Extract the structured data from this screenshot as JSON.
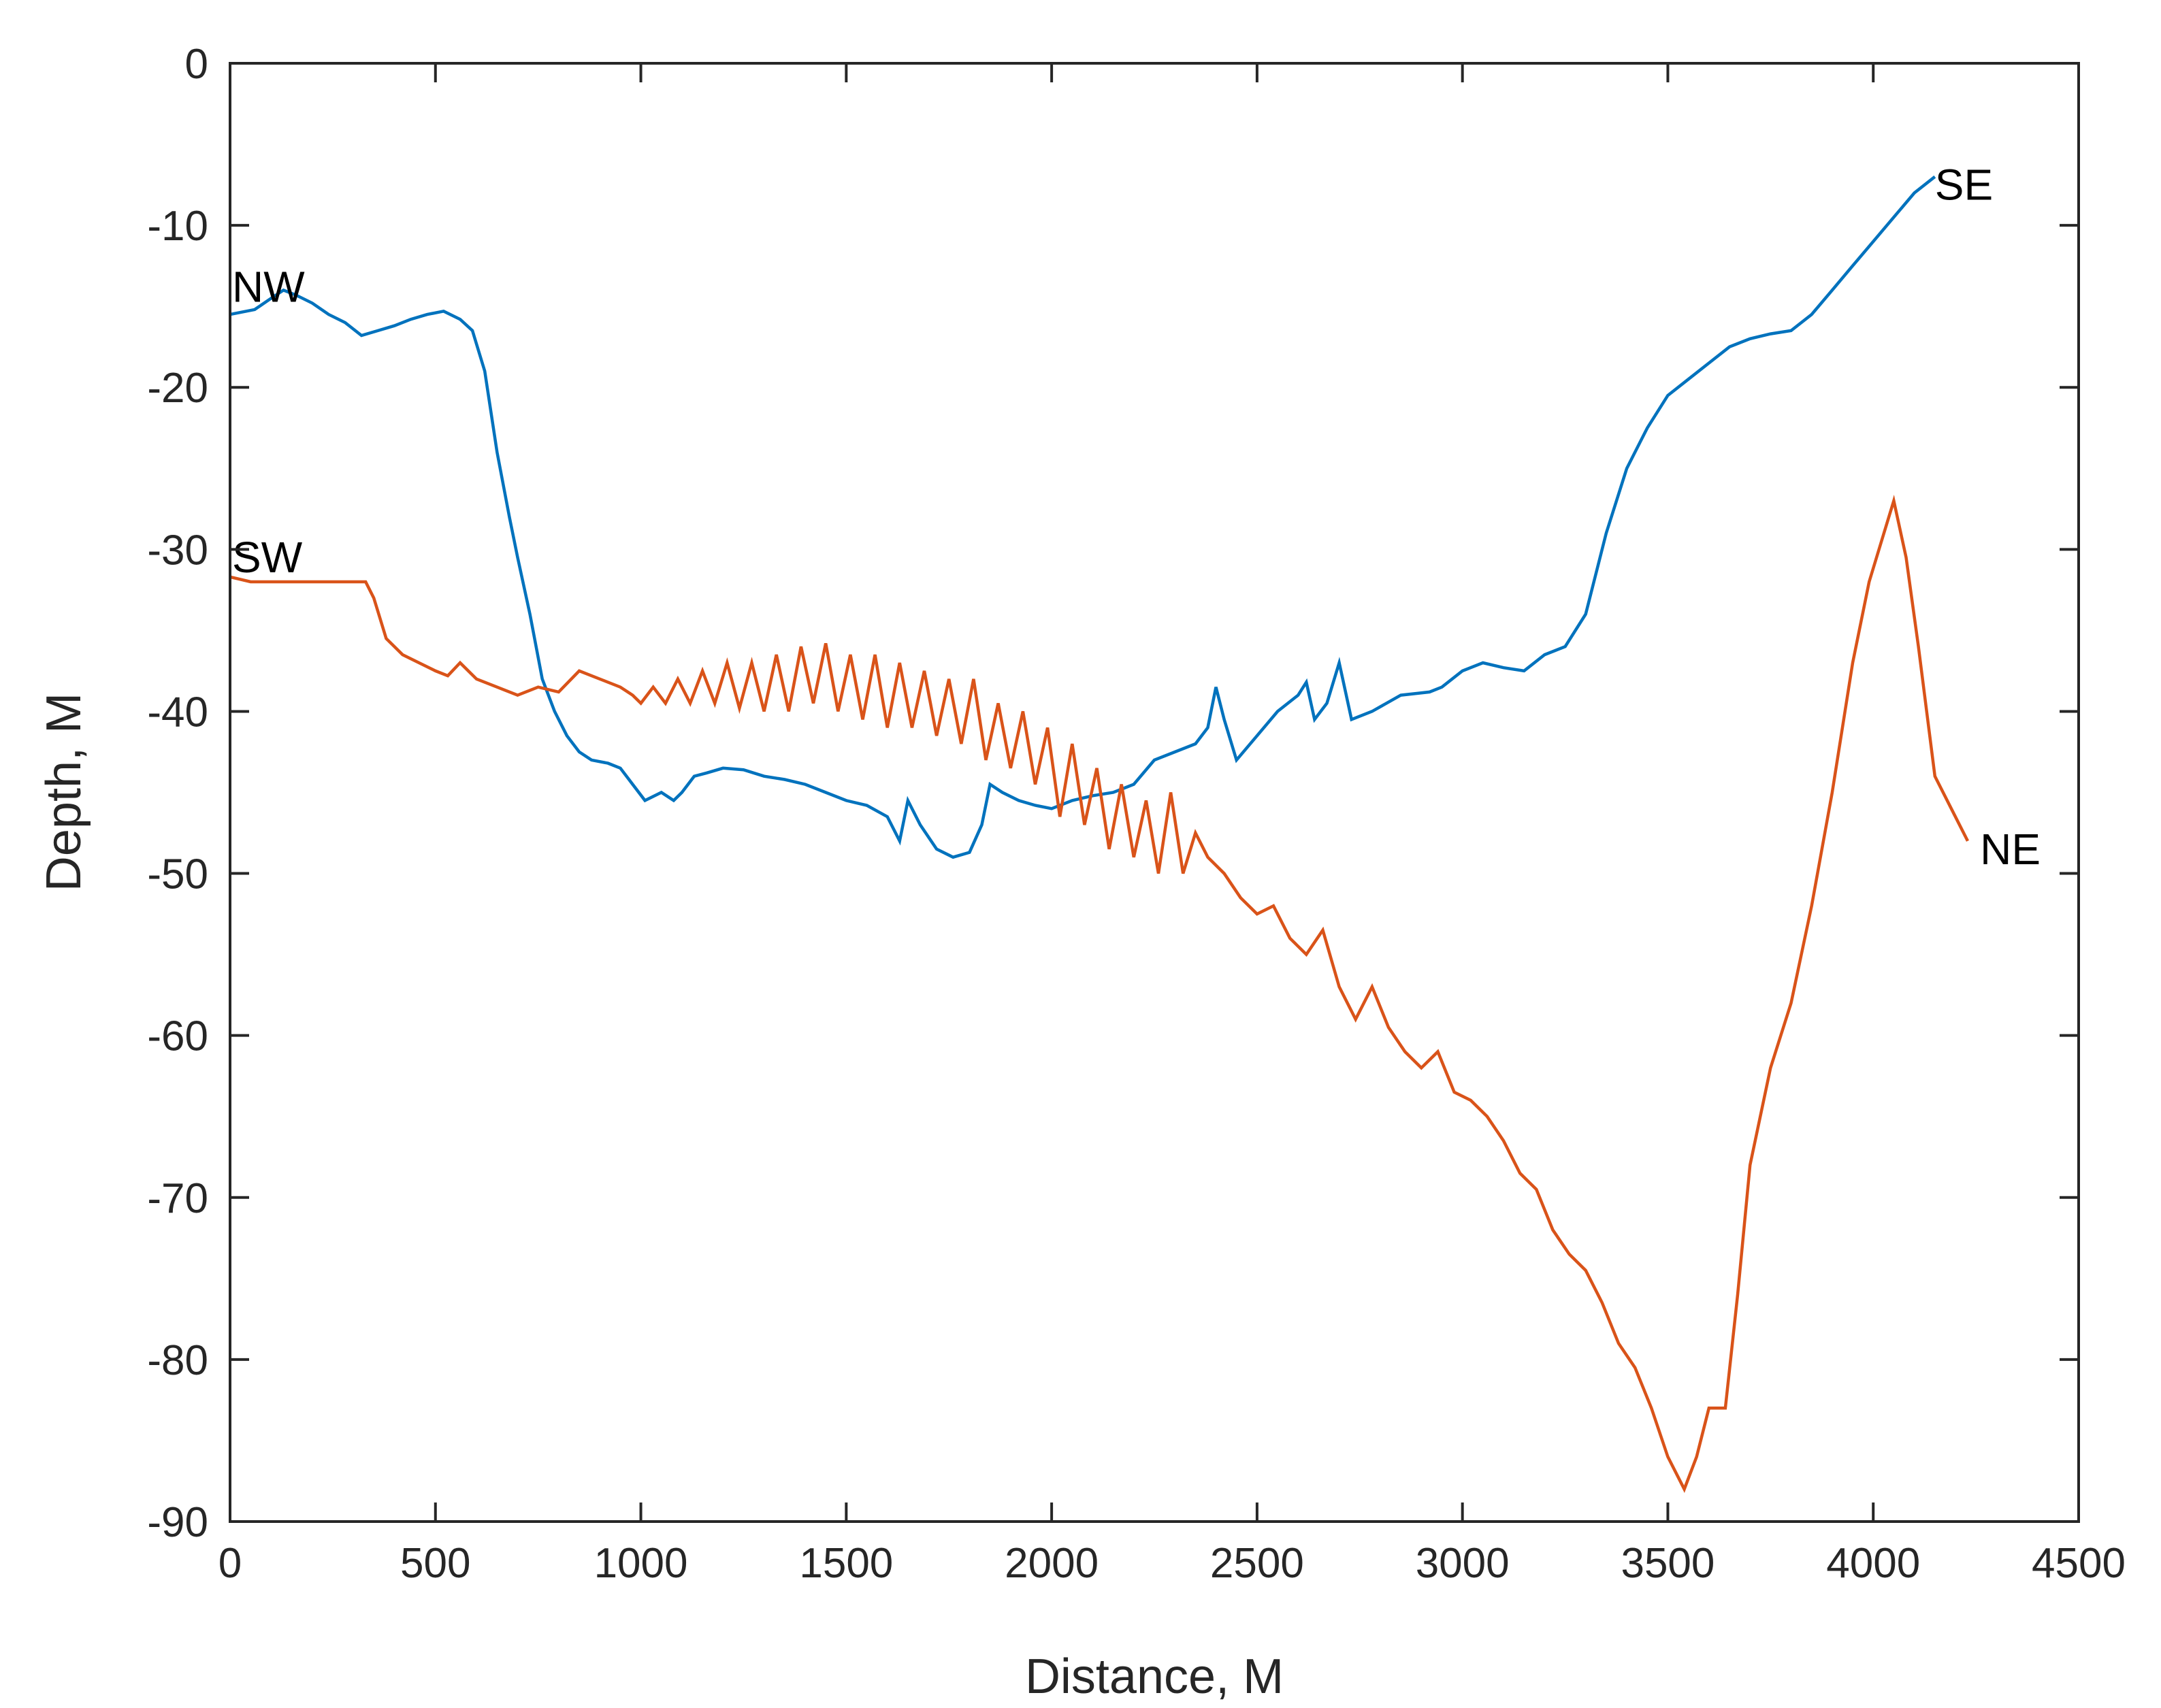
{
  "colors": {
    "series_a": "#0072BD",
    "series_b": "#D95319",
    "axes": "#262626",
    "background": "#ffffff"
  },
  "chart_data": {
    "type": "line",
    "title": "",
    "xlabel": "Distance, M",
    "ylabel": "Depth, M",
    "xlim": [
      0,
      4500
    ],
    "ylim": [
      -90,
      0
    ],
    "xticks": [
      0,
      500,
      1000,
      1500,
      2000,
      2500,
      3000,
      3500,
      4000,
      4500
    ],
    "yticks": [
      0,
      -10,
      -20,
      -30,
      -40,
      -50,
      -60,
      -70,
      -80,
      -90
    ],
    "xtick_labels": [
      "0",
      "500",
      "1000",
      "1500",
      "2000",
      "2500",
      "3000",
      "3500",
      "4000",
      "4500"
    ],
    "ytick_labels": [
      "0",
      "-10",
      "-20",
      "-30",
      "-40",
      "-50",
      "-60",
      "-70",
      "-80",
      "-90"
    ],
    "grid": false,
    "legend": "none",
    "annotations": [
      {
        "text": "NW",
        "x": 5,
        "y": -13.8
      },
      {
        "text": "SE",
        "x": 4150,
        "y": -7.5
      },
      {
        "text": "SW",
        "x": 5,
        "y": -30.5
      },
      {
        "text": "NE",
        "x": 4260,
        "y": -48.5
      }
    ],
    "series": [
      {
        "color": "#0072BD",
        "x": [
          0,
          60,
          100,
          130,
          160,
          200,
          240,
          280,
          320,
          360,
          400,
          440,
          480,
          520,
          560,
          590,
          620,
          650,
          680,
          700,
          730,
          760,
          790,
          820,
          850,
          880,
          920,
          950,
          980,
          1010,
          1050,
          1080,
          1100,
          1130,
          1160,
          1200,
          1250,
          1300,
          1350,
          1400,
          1450,
          1500,
          1550,
          1600,
          1630,
          1650,
          1680,
          1720,
          1760,
          1800,
          1830,
          1850,
          1880,
          1920,
          1960,
          2000,
          2050,
          2100,
          2150,
          2200,
          2250,
          2300,
          2350,
          2380,
          2400,
          2420,
          2450,
          2500,
          2550,
          2600,
          2620,
          2640,
          2670,
          2700,
          2730,
          2780,
          2850,
          2920,
          2950,
          3000,
          3050,
          3100,
          3150,
          3200,
          3250,
          3300,
          3350,
          3400,
          3450,
          3500,
          3550,
          3600,
          3650,
          3700,
          3750,
          3800,
          3850,
          3900,
          3950,
          4000,
          4050,
          4100,
          4150
        ],
        "y": [
          -15.5,
          -15.2,
          -14.5,
          -14.0,
          -14.3,
          -14.8,
          -15.5,
          -16.0,
          -16.8,
          -16.5,
          -16.2,
          -15.8,
          -15.5,
          -15.3,
          -15.8,
          -16.5,
          -19.0,
          -24.0,
          -28.0,
          -30.5,
          -34.0,
          -38.0,
          -40.0,
          -41.5,
          -42.5,
          -43.0,
          -43.2,
          -43.5,
          -44.5,
          -45.5,
          -45.0,
          -45.5,
          -45.0,
          -44.0,
          -43.8,
          -43.5,
          -43.6,
          -44.0,
          -44.2,
          -44.5,
          -45.0,
          -45.5,
          -45.8,
          -46.5,
          -48.0,
          -45.5,
          -47.0,
          -48.5,
          -49.0,
          -48.7,
          -47.0,
          -44.5,
          -45.0,
          -45.5,
          -45.8,
          -46.0,
          -45.5,
          -45.2,
          -45.0,
          -44.5,
          -43.0,
          -42.5,
          -42.0,
          -41.0,
          -38.5,
          -40.5,
          -43.0,
          -41.5,
          -40.0,
          -39.0,
          -38.2,
          -40.5,
          -39.5,
          -37.0,
          -40.5,
          -40.0,
          -39.0,
          -38.8,
          -38.5,
          -37.5,
          -37.0,
          -37.3,
          -37.5,
          -36.5,
          -36.0,
          -34.0,
          -29.0,
          -25.0,
          -22.5,
          -20.5,
          -19.5,
          -18.5,
          -17.5,
          -17.0,
          -16.7,
          -16.5,
          -15.5,
          -14.0,
          -12.5,
          -11.0,
          -9.5,
          -8.0,
          -7.0
        ]
      },
      {
        "color": "#D95319",
        "x": [
          0,
          50,
          100,
          150,
          200,
          250,
          300,
          330,
          350,
          380,
          420,
          460,
          500,
          530,
          560,
          600,
          650,
          700,
          750,
          800,
          850,
          900,
          950,
          980,
          1000,
          1030,
          1060,
          1090,
          1120,
          1150,
          1180,
          1210,
          1240,
          1270,
          1300,
          1330,
          1360,
          1390,
          1420,
          1450,
          1480,
          1510,
          1540,
          1570,
          1600,
          1630,
          1660,
          1690,
          1720,
          1750,
          1780,
          1810,
          1840,
          1870,
          1900,
          1930,
          1960,
          1990,
          2020,
          2050,
          2080,
          2110,
          2140,
          2170,
          2200,
          2230,
          2260,
          2290,
          2320,
          2350,
          2380,
          2420,
          2460,
          2500,
          2540,
          2580,
          2620,
          2660,
          2700,
          2740,
          2780,
          2820,
          2860,
          2900,
          2940,
          2980,
          3020,
          3060,
          3100,
          3140,
          3180,
          3220,
          3260,
          3300,
          3340,
          3380,
          3420,
          3460,
          3500,
          3540,
          3570,
          3600,
          3640,
          3670,
          3700,
          3750,
          3800,
          3850,
          3900,
          3950,
          3990,
          4020,
          4050,
          4080,
          4110,
          4150,
          4200,
          4230
        ],
        "y": [
          -31.7,
          -32.0,
          -32.0,
          -32.0,
          -32.0,
          -32.0,
          -32.0,
          -32.0,
          -33.0,
          -35.5,
          -36.5,
          -37.0,
          -37.5,
          -37.8,
          -37.0,
          -38.0,
          -38.5,
          -39.0,
          -38.5,
          -38.8,
          -37.5,
          -38.0,
          -38.5,
          -39.0,
          -39.5,
          -38.5,
          -39.5,
          -38.0,
          -39.5,
          -37.5,
          -39.5,
          -37.0,
          -39.8,
          -37.0,
          -40.0,
          -36.5,
          -40.0,
          -36.0,
          -39.5,
          -35.8,
          -40.0,
          -36.5,
          -40.5,
          -36.5,
          -41.0,
          -37.0,
          -41.0,
          -37.5,
          -41.5,
          -38.0,
          -42.0,
          -38.0,
          -43.0,
          -39.5,
          -43.5,
          -40.0,
          -44.5,
          -41.0,
          -46.5,
          -42.0,
          -47.0,
          -43.5,
          -48.5,
          -44.5,
          -49.0,
          -45.5,
          -50.0,
          -45.0,
          -50.0,
          -47.5,
          -49.0,
          -50.0,
          -51.5,
          -52.5,
          -52.0,
          -54.0,
          -55.0,
          -53.5,
          -57.0,
          -59.0,
          -57.0,
          -59.5,
          -61.0,
          -62.0,
          -61.0,
          -63.5,
          -64.0,
          -65.0,
          -66.5,
          -68.5,
          -69.5,
          -72.0,
          -73.5,
          -74.5,
          -76.5,
          -79.0,
          -80.5,
          -83.0,
          -86.0,
          -88.0,
          -86.0,
          -83.0,
          -83.0,
          -76.0,
          -68.0,
          -62.0,
          -58.0,
          -52.0,
          -45.0,
          -37.0,
          -32.0,
          -29.5,
          -27.0,
          -30.5,
          -36.0,
          -44.0,
          -46.5,
          -48.0
        ]
      }
    ]
  }
}
